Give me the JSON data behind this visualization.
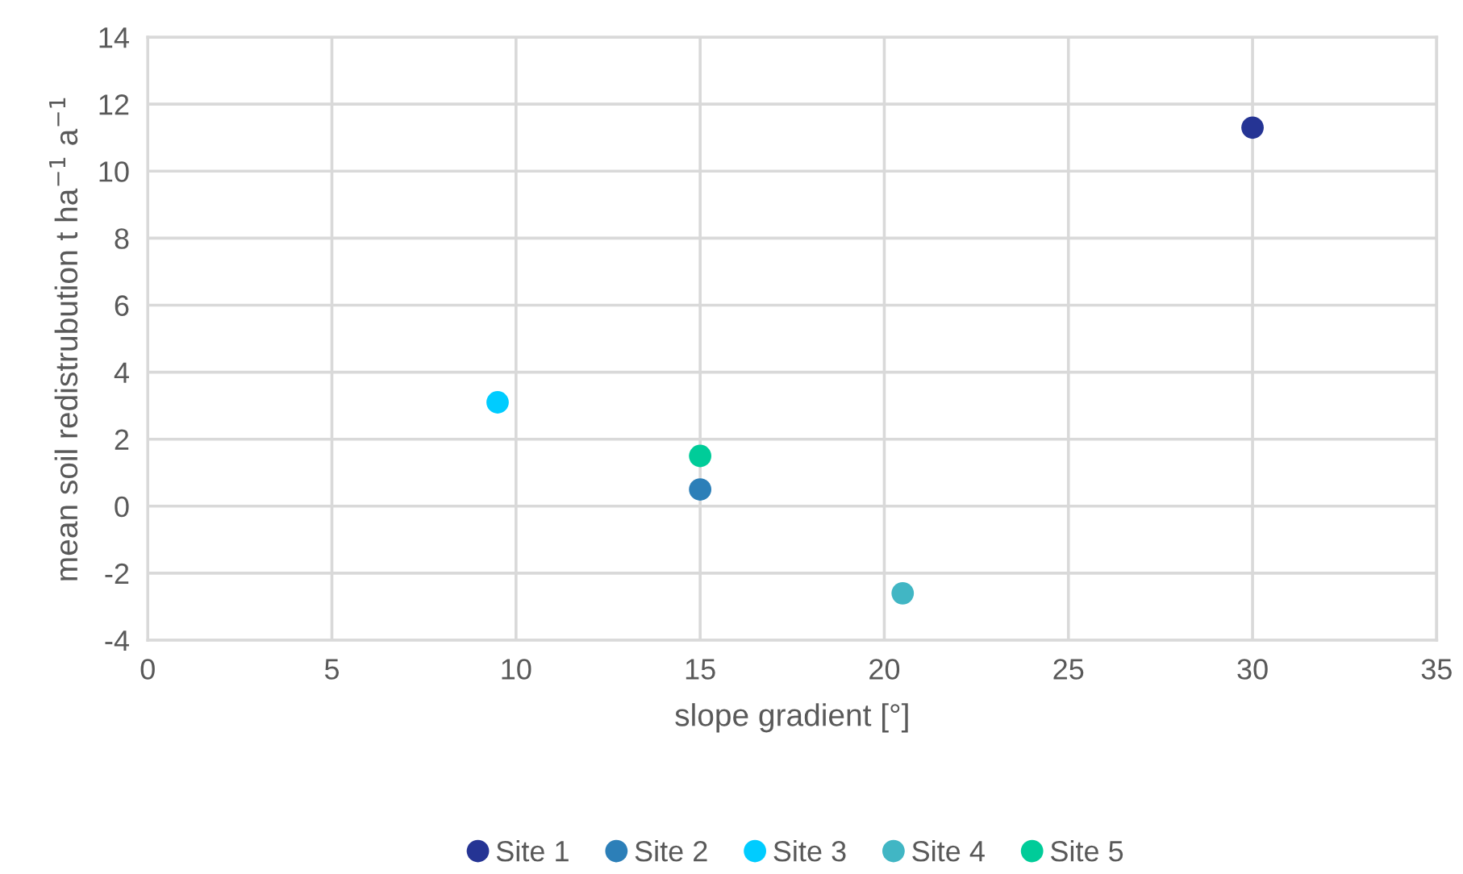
{
  "chart_data": {
    "type": "scatter",
    "xlabel": "slope gradient [°]",
    "ylabel": "mean soil redistrubution t ha$^{−1}$ a$^{−1}$",
    "xlim": [
      0,
      35
    ],
    "xticks": [
      0,
      5,
      10,
      15,
      20,
      25,
      30,
      35
    ],
    "ylim": [
      -4,
      14
    ],
    "yticks": [
      -4,
      -2,
      0,
      2,
      4,
      6,
      8,
      10,
      12,
      14
    ],
    "grid": true,
    "legend": "bottom",
    "marker": "circle",
    "series": [
      {
        "name": "Site 1",
        "color": "#253494",
        "x": [
          30
        ],
        "values": [
          11.3
        ]
      },
      {
        "name": "Site 2",
        "color": "#2c7fb8",
        "x": [
          15
        ],
        "values": [
          0.5
        ]
      },
      {
        "name": "Site 3",
        "color": "#00ccff",
        "x": [
          9.5
        ],
        "values": [
          3.1
        ]
      },
      {
        "name": "Site 4",
        "color": "#41b6c4",
        "x": [
          20.5
        ],
        "values": [
          -2.6
        ]
      },
      {
        "name": "Site 5",
        "color": "#00cc99",
        "x": [
          15
        ],
        "values": [
          1.5
        ]
      }
    ]
  }
}
